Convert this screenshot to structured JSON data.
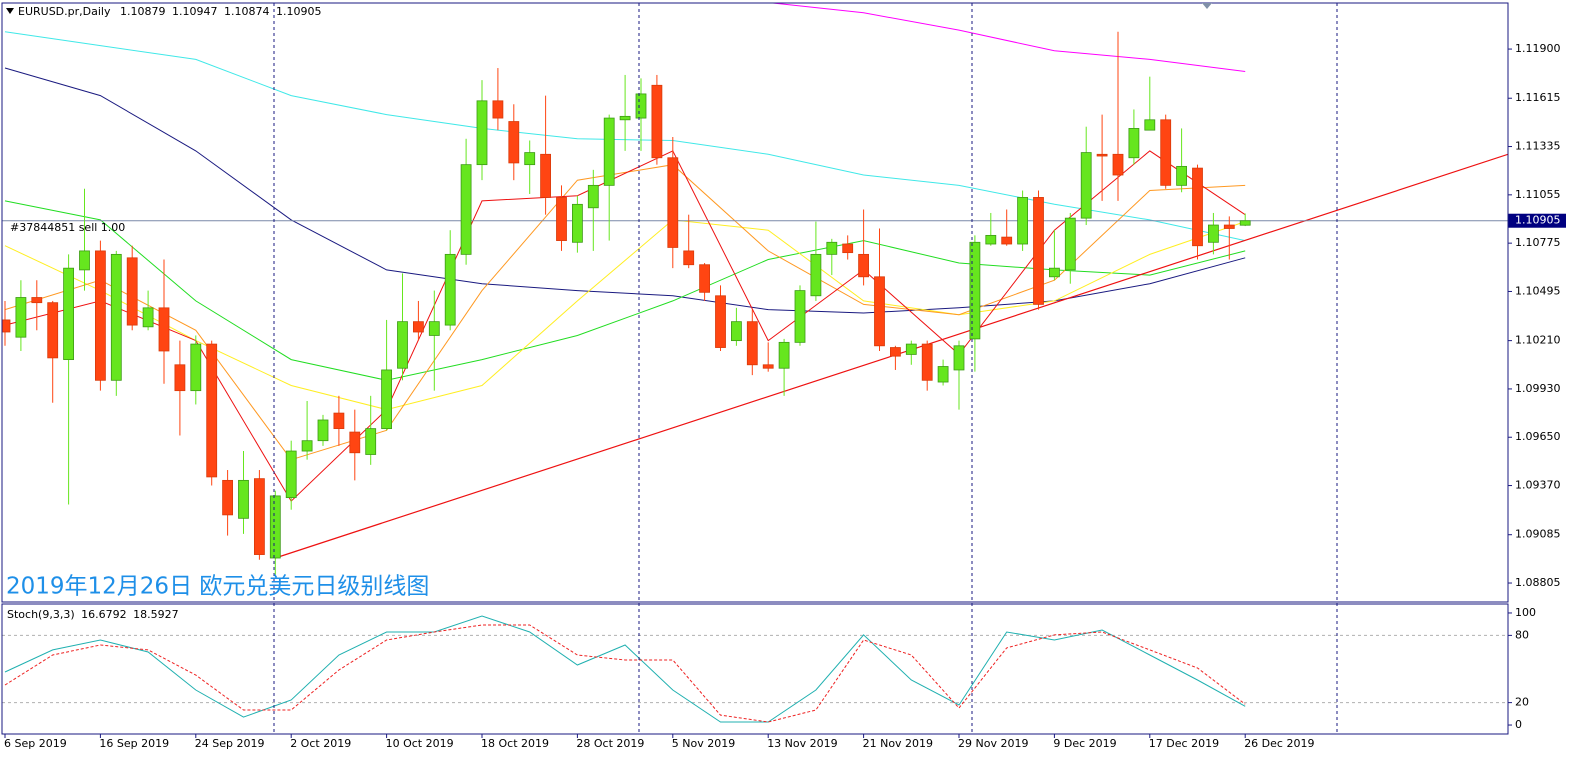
{
  "chart_data": {
    "type": "candlestick",
    "symbol": "EURUSD.pr,Daily",
    "order_label": "#37844851 sell 1.00",
    "title": "2019年12月26日 欧元兑美元日级别线图",
    "categories": [
      "6 Sep 2019",
      null,
      null,
      null,
      null,
      null,
      "16 Sep 2019",
      null,
      null,
      null,
      null,
      null,
      "24 Sep 2019",
      null,
      null,
      null,
      null,
      null,
      "2 Oct 2019",
      null,
      null,
      null,
      null,
      null,
      "10 Oct 2019",
      null,
      null,
      null,
      null,
      null,
      "18 Oct 2019",
      null,
      null,
      null,
      null,
      null,
      "28 Oct 2019",
      null,
      null,
      null,
      null,
      null,
      "5 Nov 2019",
      null,
      null,
      null,
      null,
      null,
      "13 Nov 2019",
      null,
      null,
      null,
      null,
      null,
      "21 Nov 2019",
      null,
      null,
      null,
      null,
      null,
      "29 Nov 2019",
      null,
      null,
      null,
      null,
      null,
      "9 Dec 2019",
      null,
      null,
      null,
      null,
      null,
      "17 Dec 2019",
      null,
      null,
      null,
      null,
      null,
      "26 Dec 2019"
    ],
    "open": [
      1.1033,
      1.1023,
      1.1046,
      1.1043,
      1.101,
      1.1062,
      1.1073,
      1.0998,
      1.1069,
      1.1029,
      1.104,
      1.1007,
      1.0992,
      1.1019,
      1.094,
      1.0918,
      1.0941,
      1.0895,
      1.093,
      1.0957,
      1.0963,
      1.0979,
      1.0968,
      1.0955,
      1.097,
      1.1005,
      1.1032,
      1.1024,
      1.103,
      1.1071,
      1.1123,
      1.116,
      1.1148,
      1.1123,
      1.1129,
      1.1104,
      1.1078,
      1.1098,
      1.1111,
      1.1149,
      1.115,
      1.1169,
      1.1127,
      1.1073,
      1.1065,
      1.1047,
      1.1021,
      1.1032,
      1.1007,
      1.1005,
      1.102,
      1.1047,
      1.1071,
      1.1077,
      1.1071,
      1.1058,
      1.1017,
      1.1013,
      1.1019,
      1.0997,
      1.1004,
      1.1022,
      1.1077,
      1.1081,
      1.1077,
      1.1104,
      1.1058,
      1.1062,
      1.1092,
      1.1129,
      1.1129,
      1.1127,
      1.1143,
      1.1149,
      1.1111,
      1.1121,
      1.1078,
      1.1088,
      1.10879
    ],
    "high": [
      1.1044,
      1.1056,
      1.1056,
      1.1044,
      1.1071,
      1.1109,
      1.1079,
      1.1073,
      1.1076,
      1.105,
      1.1068,
      1.1021,
      1.1024,
      1.1021,
      1.0946,
      1.0957,
      1.0946,
      1.0934,
      1.0963,
      1.0986,
      1.0978,
      1.0989,
      1.0981,
      1.0989,
      1.1033,
      1.106,
      1.1044,
      1.105,
      1.1085,
      1.1138,
      1.1172,
      1.1179,
      1.1158,
      1.1137,
      1.1163,
      1.1111,
      1.1105,
      1.112,
      1.1152,
      1.1175,
      1.1173,
      1.1175,
      1.1139,
      1.1094,
      1.1066,
      1.1053,
      1.104,
      1.1039,
      1.102,
      1.1022,
      1.1053,
      1.109,
      1.108,
      1.1082,
      1.1097,
      1.1086,
      1.1018,
      1.1021,
      1.1021,
      1.101,
      1.1021,
      1.1082,
      1.1095,
      1.1097,
      1.1108,
      1.1108,
      1.1085,
      1.1095,
      1.1145,
      1.1152,
      1.12,
      1.1155,
      1.1174,
      1.1152,
      1.1144,
      1.1123,
      1.1095,
      1.1093,
      1.10947
    ],
    "low": [
      1.1018,
      1.1015,
      1.1027,
      1.0985,
      1.0926,
      1.105,
      1.0992,
      1.0989,
      1.1027,
      1.1027,
      1.0996,
      1.0966,
      1.0984,
      1.0937,
      1.0908,
      1.0909,
      1.0894,
      1.0885,
      1.0923,
      1.0952,
      1.096,
      1.096,
      1.094,
      1.0949,
      1.0969,
      1.0998,
      1.1021,
      1.0992,
      1.1027,
      1.1065,
      1.1114,
      1.1143,
      1.1114,
      1.1106,
      1.1094,
      1.1073,
      1.1072,
      1.1073,
      1.1079,
      1.1131,
      1.1131,
      1.1123,
      1.1063,
      1.1063,
      1.1044,
      1.1015,
      1.1018,
      1.1001,
      1.1003,
      1.0989,
      1.1018,
      1.1044,
      1.1059,
      1.1068,
      1.1053,
      1.1015,
      1.1004,
      1.1007,
      1.0992,
      1.0995,
      1.0981,
      1.1003,
      1.1076,
      1.1076,
      1.1073,
      1.1039,
      1.1056,
      1.1054,
      1.1088,
      1.1102,
      1.1102,
      1.1123,
      1.1143,
      1.1109,
      1.1107,
      1.1068,
      1.1071,
      1.1068,
      1.10874
    ],
    "close": [
      1.1026,
      1.1046,
      1.1043,
      1.1011,
      1.1063,
      1.1073,
      1.0998,
      1.1071,
      1.103,
      1.104,
      1.1015,
      1.0992,
      1.1019,
      1.0942,
      1.092,
      1.094,
      1.0897,
      1.0931,
      1.0957,
      1.0963,
      1.0975,
      1.097,
      1.0956,
      1.097,
      1.1004,
      1.1032,
      1.1026,
      1.1032,
      1.1071,
      1.1123,
      1.116,
      1.115,
      1.1124,
      1.113,
      1.1104,
      1.1079,
      1.11,
      1.1111,
      1.115,
      1.1151,
      1.1164,
      1.1127,
      1.1075,
      1.1065,
      1.1049,
      1.1017,
      1.1032,
      1.1007,
      1.1005,
      1.102,
      1.105,
      1.1071,
      1.1078,
      1.1072,
      1.1058,
      1.1018,
      1.1012,
      1.1019,
      1.0998,
      1.1006,
      1.1018,
      1.1078,
      1.1082,
      1.1077,
      1.1104,
      1.1042,
      1.1063,
      1.1092,
      1.113,
      1.1128,
      1.1117,
      1.1144,
      1.1149,
      1.1111,
      1.1122,
      1.1076,
      1.1088,
      1.1086,
      1.10905
    ],
    "up_color": "#66e61e",
    "down_color": "#ff4512",
    "ylim": [
      1.08695,
      1.12167
    ],
    "yticks": [
      {
        "value": 1.119,
        "label": "1.11900"
      },
      {
        "value": 1.11615,
        "label": "1.11615"
      },
      {
        "value": 1.11335,
        "label": "1.11335"
      },
      {
        "value": 1.11055,
        "label": "1.11055"
      },
      {
        "value": 1.10775,
        "label": "1.10775"
      },
      {
        "value": 1.10495,
        "label": "1.10495"
      },
      {
        "value": 1.1021,
        "label": "1.10210"
      },
      {
        "value": 1.0993,
        "label": "1.09930"
      },
      {
        "value": 1.0965,
        "label": "1.09650"
      },
      {
        "value": 1.0937,
        "label": "1.09370"
      },
      {
        "value": 1.09085,
        "label": "1.09085"
      },
      {
        "value": 1.08805,
        "label": "1.08805"
      }
    ],
    "lines": [
      {
        "color": "#ff00ff",
        "values": [
          null,
          null,
          null,
          null,
          null,
          null,
          null,
          null,
          1.1217,
          1.1211,
          1.1201,
          1.1189,
          1.1184,
          1.1177
        ]
      },
      {
        "color": "#40e8e8",
        "values": [
          1.12,
          1.1192,
          1.1184,
          1.1163,
          1.1152,
          1.1144,
          1.1138,
          1.1137,
          1.1129,
          1.1117,
          1.1111,
          1.11,
          1.1091,
          1.1079
        ]
      },
      {
        "color": "#1a1a80",
        "values": [
          1.1179,
          1.1163,
          1.1131,
          1.1091,
          1.1062,
          1.1054,
          1.105,
          1.1047,
          1.1039,
          1.1037,
          1.104,
          1.1044,
          1.1054,
          1.1069
        ]
      },
      {
        "color": "#22dd22",
        "values": [
          1.1102,
          1.1091,
          1.1044,
          1.101,
          1.0998,
          1.101,
          1.1024,
          1.1044,
          1.1068,
          1.1079,
          1.1066,
          1.1062,
          1.1059,
          1.1073
        ]
      },
      {
        "color": "#ffee22",
        "values": [
          1.1076,
          1.105,
          1.1021,
          1.0995,
          1.0981,
          1.0995,
          1.1044,
          1.1091,
          1.1085,
          1.1044,
          1.1036,
          1.1044,
          1.1071,
          1.109
        ]
      },
      {
        "color": "#ff9922",
        "values": [
          1.1039,
          1.1056,
          1.1027,
          1.0952,
          1.0969,
          1.105,
          1.1114,
          1.1123,
          1.1073,
          1.1042,
          1.1036,
          1.1056,
          1.1108,
          1.1111
        ]
      },
      {
        "color": "#ee1111",
        "values": [
          1.103,
          1.1044,
          1.1021,
          1.0928,
          1.0981,
          1.1102,
          1.1105,
          1.1131,
          1.1021,
          1.1062,
          1.1013,
          1.1085,
          1.1131,
          1.1094
        ]
      }
    ],
    "trendline": {
      "color": "#ee1111",
      "values": [
        1.0895,
        1.1129
      ]
    },
    "stochastic": {
      "label": "Stoch(9,3,3)",
      "main_color": "#20b0b0",
      "signal_color": "#ee2222",
      "main": [
        47.3,
        67.0,
        75.9,
        65.2,
        31.3,
        7.1,
        22.3,
        62.5,
        83.0,
        83.0,
        97.3,
        83.0,
        53.6,
        71.4,
        31.3,
        2.7,
        2.7,
        31.3,
        80.4,
        40.2,
        17.9,
        83.0,
        75.9,
        84.8,
        62.5,
        40.2,
        16.6792
      ],
      "signal": [
        35.7,
        62.5,
        71.4,
        67.0,
        44.6,
        13.4,
        13.4,
        49.1,
        75.9,
        83.0,
        89.3,
        89.3,
        62.5,
        58.0,
        58.0,
        8.9,
        2.7,
        13.4,
        75.9,
        62.5,
        15.2,
        68.8,
        80.4,
        83.0,
        67.0,
        50.9,
        18.5927
      ],
      "ylim": [
        -8,
        108
      ],
      "yticks": [
        100,
        80,
        20,
        0
      ],
      "levels": [
        80,
        20
      ]
    }
  }
}
